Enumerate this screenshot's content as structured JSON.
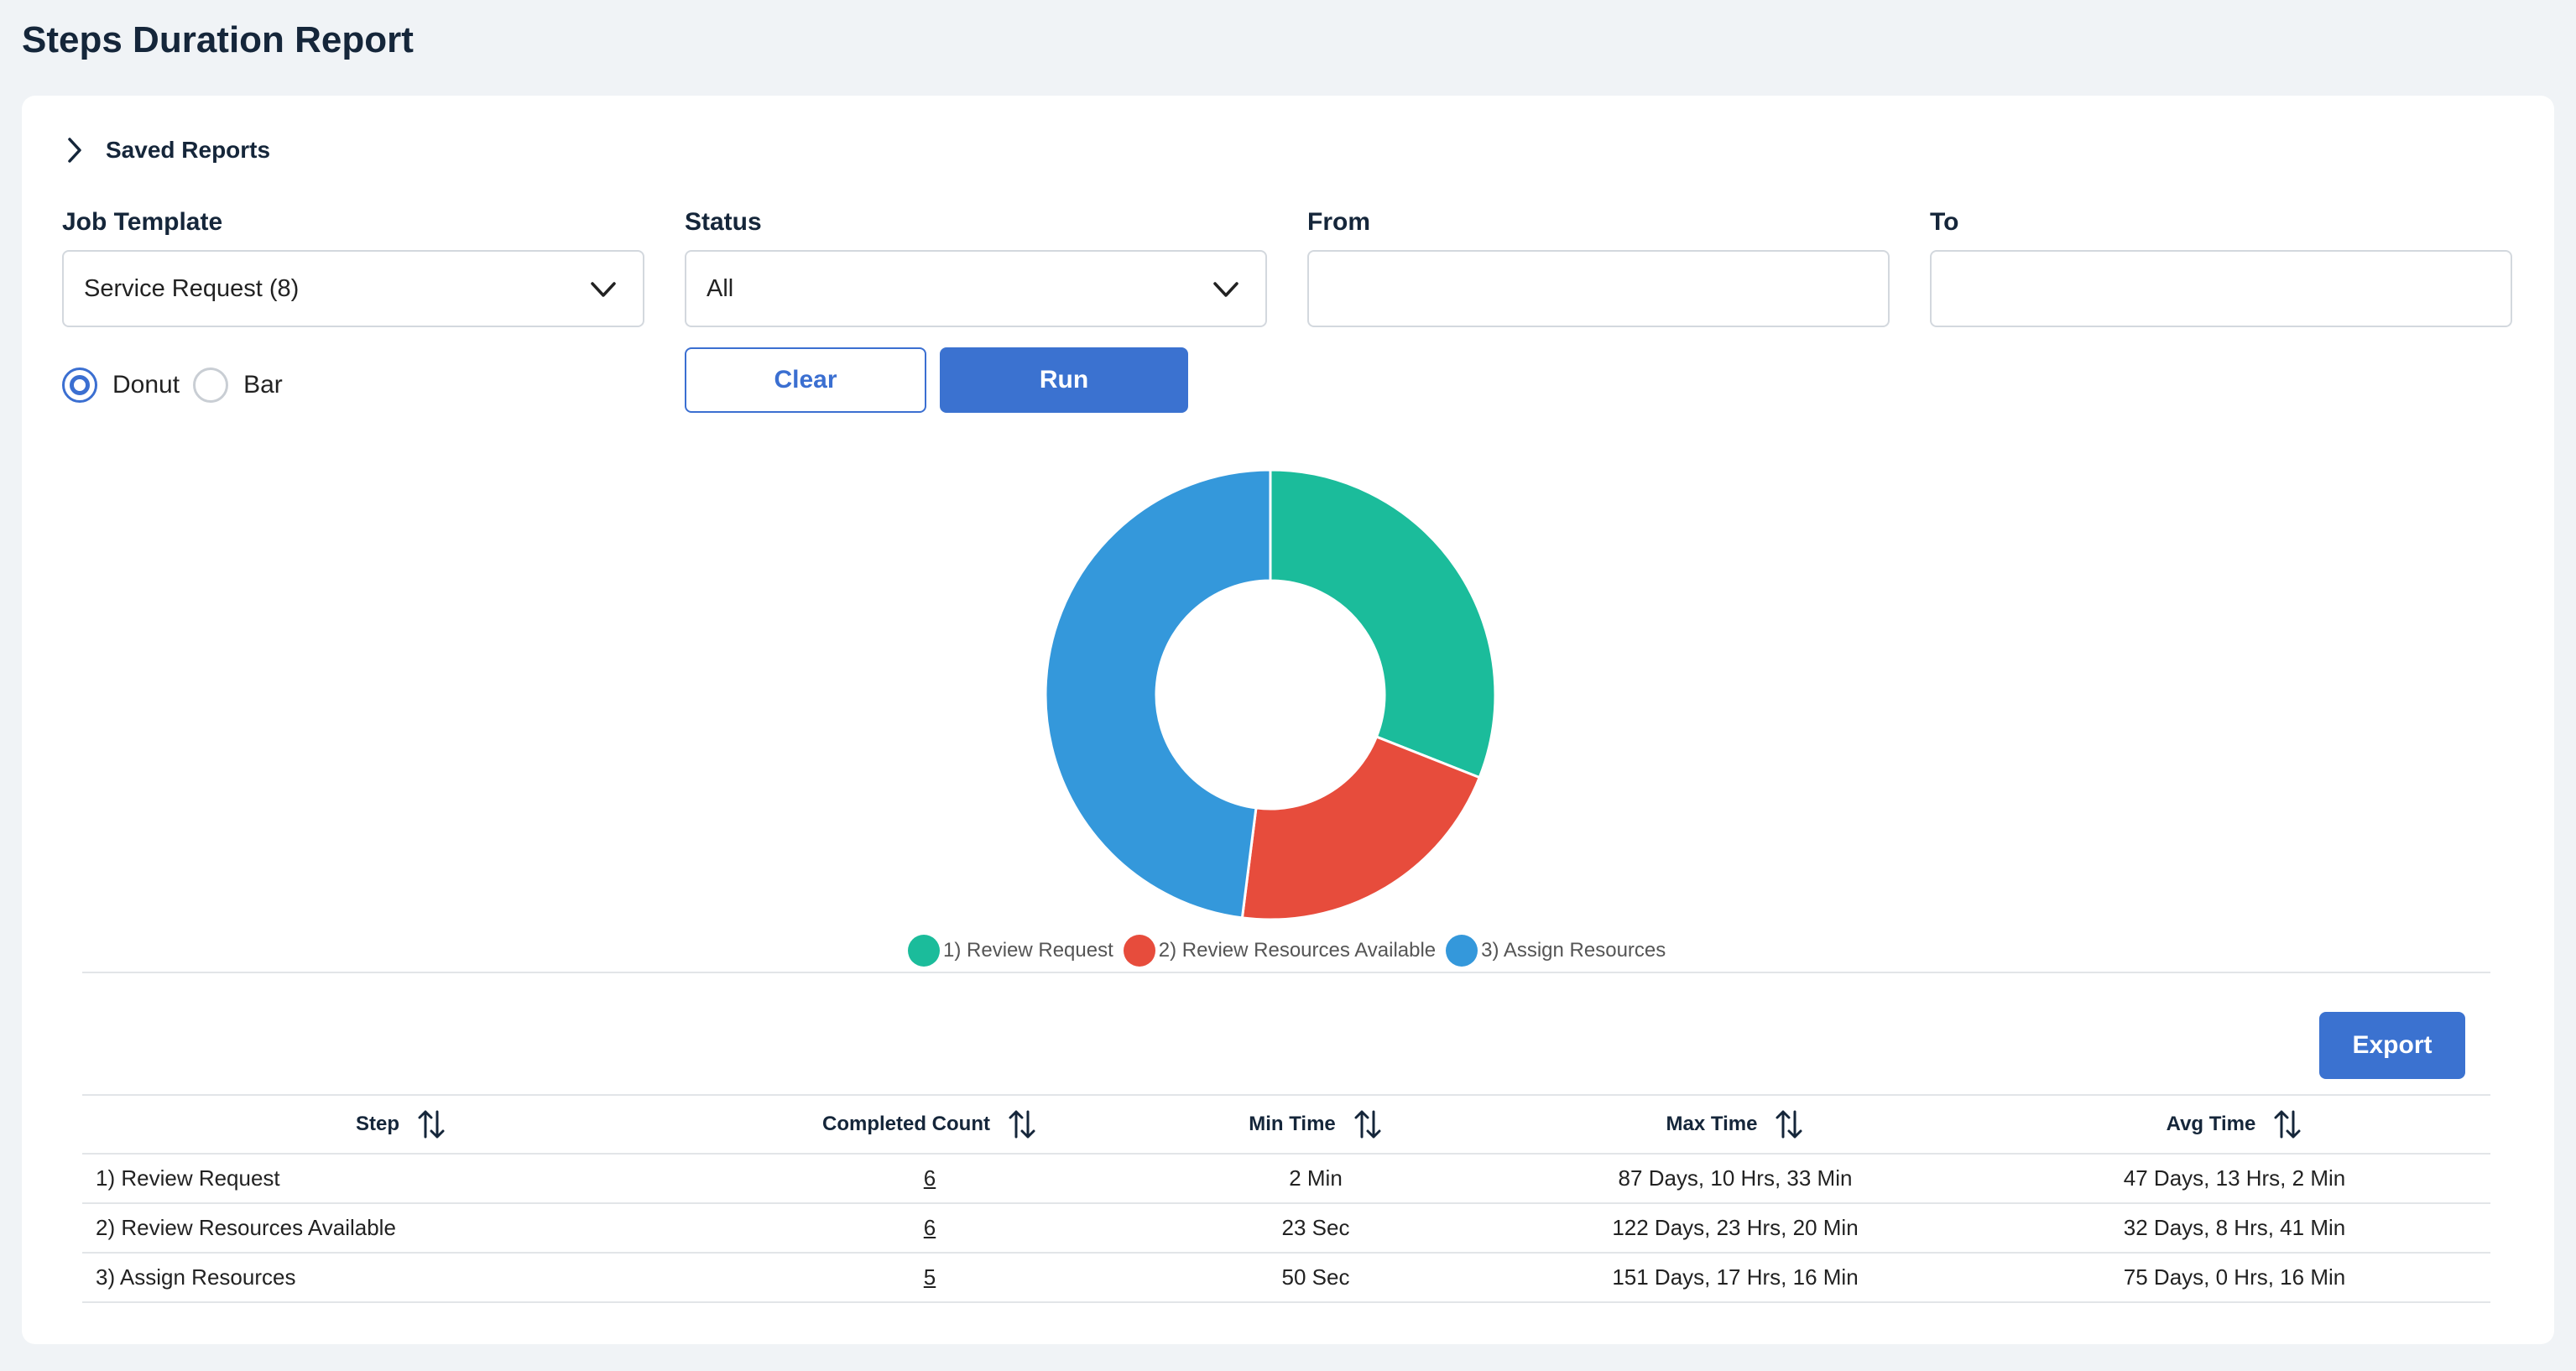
{
  "page": {
    "title": "Steps Duration Report"
  },
  "saved_reports": {
    "label": "Saved Reports"
  },
  "filters": {
    "job_template": {
      "label": "Job Template",
      "value": "Service Request (8)"
    },
    "status": {
      "label": "Status",
      "value": "All"
    },
    "from": {
      "label": "From",
      "value": ""
    },
    "to": {
      "label": "To",
      "value": ""
    }
  },
  "chart_type": {
    "options": [
      {
        "label": "Donut",
        "selected": true
      },
      {
        "label": "Bar",
        "selected": false
      }
    ]
  },
  "buttons": {
    "clear": "Clear",
    "run": "Run",
    "export": "Export"
  },
  "chart_data": {
    "type": "pie",
    "donut": true,
    "categories": [
      "1) Review Request",
      "2) Review Resources Available",
      "3) Assign Resources"
    ],
    "values": [
      31,
      21,
      48
    ],
    "colors": [
      "#1bbc9b",
      "#e74c3c",
      "#3498db"
    ],
    "legend": "bottom"
  },
  "table": {
    "headers": [
      "Step",
      "Completed Count",
      "Min Time",
      "Max Time",
      "Avg Time"
    ],
    "rows": [
      {
        "step": "1) Review Request",
        "count": "6",
        "min": "2 Min",
        "max": "87 Days, 10 Hrs, 33 Min",
        "avg": "47 Days, 13 Hrs, 2 Min"
      },
      {
        "step": "2) Review Resources Available",
        "count": "6",
        "min": "23 Sec",
        "max": "122 Days, 23 Hrs, 20 Min",
        "avg": "32 Days, 8 Hrs, 41 Min"
      },
      {
        "step": "3) Assign Resources",
        "count": "5",
        "min": "50 Sec",
        "max": "151 Days, 17 Hrs, 16 Min",
        "avg": "75 Days, 0 Hrs, 16 Min"
      }
    ]
  }
}
